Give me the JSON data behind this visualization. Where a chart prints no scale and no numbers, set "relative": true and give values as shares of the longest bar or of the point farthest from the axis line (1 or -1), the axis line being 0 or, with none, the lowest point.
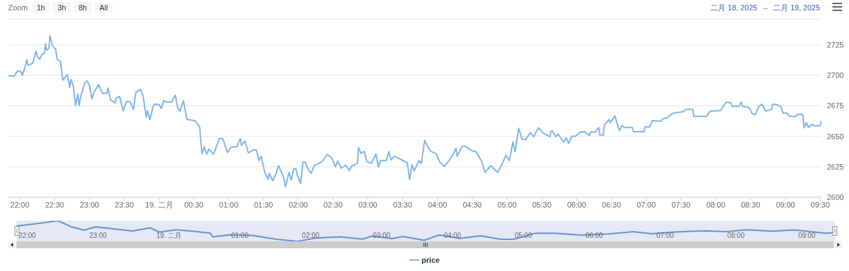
{
  "chart_data": [
    {
      "type": "line",
      "annotations": [
        "Zoom",
        "1h",
        "3h",
        "8h",
        "All",
        "二月 18, 2025",
        "→",
        "二月 19, 2025"
      ],
      "x": [
        "2025-02-18T21:50",
        "2025-02-18T21:55",
        "2025-02-18T21:58",
        "2025-02-18T22:01",
        "2025-02-18T22:02",
        "2025-02-18T22:04",
        "2025-02-18T22:06",
        "2025-02-18T22:07",
        "2025-02-18T22:11",
        "2025-02-18T22:14",
        "2025-02-18T22:15",
        "2025-02-18T22:17",
        "2025-02-18T22:19",
        "2025-02-18T22:21",
        "2025-02-18T22:22",
        "2025-02-18T22:23",
        "2025-02-18T22:25",
        "2025-02-18T22:26",
        "2025-02-18T22:28",
        "2025-02-18T22:31",
        "2025-02-18T22:32",
        "2025-02-18T22:35",
        "2025-02-18T22:37",
        "2025-02-18T22:39",
        "2025-02-18T22:41",
        "2025-02-18T22:43",
        "2025-02-18T22:44",
        "2025-02-18T22:46",
        "2025-02-18T22:48",
        "2025-02-18T22:50",
        "2025-02-18T22:51",
        "2025-02-18T22:53",
        "2025-02-18T22:56",
        "2025-02-18T22:58",
        "2025-02-18T23:00",
        "2025-02-18T23:02",
        "2025-02-18T23:04",
        "2025-02-18T23:08",
        "2025-02-18T23:11",
        "2025-02-18T23:15",
        "2025-02-18T23:16",
        "2025-02-18T23:18",
        "2025-02-18T23:22",
        "2025-02-18T23:23",
        "2025-02-18T23:26",
        "2025-02-18T23:29",
        "2025-02-18T23:32",
        "2025-02-18T23:35",
        "2025-02-18T23:38",
        "2025-02-18T23:40",
        "2025-02-18T23:44",
        "2025-02-18T23:46",
        "2025-02-18T23:49",
        "2025-02-18T23:50",
        "2025-02-18T23:52",
        "2025-02-18T23:55",
        "2025-02-18T23:56",
        "2025-02-19T00:00",
        "2025-02-19T00:02",
        "2025-02-19T00:04",
        "2025-02-19T00:06",
        "2025-02-19T00:11",
        "2025-02-19T00:14",
        "2025-02-19T00:16",
        "2025-02-19T00:18",
        "2025-02-19T00:21",
        "2025-02-19T00:24",
        "2025-02-19T00:28",
        "2025-02-19T00:31",
        "2025-02-19T00:35",
        "2025-02-19T00:37",
        "2025-02-19T00:39",
        "2025-02-19T00:41",
        "2025-02-19T00:43",
        "2025-02-19T00:47",
        "2025-02-19T00:52",
        "2025-02-19T00:55",
        "2025-02-19T00:59",
        "2025-02-19T01:02",
        "2025-02-19T01:07",
        "2025-02-19T01:10",
        "2025-02-19T01:11",
        "2025-02-19T01:14",
        "2025-02-19T01:17",
        "2025-02-19T01:22",
        "2025-02-19T01:24",
        "2025-02-19T01:26",
        "2025-02-19T01:28",
        "2025-02-19T01:31",
        "2025-02-19T01:34",
        "2025-02-19T01:35",
        "2025-02-19T01:38",
        "2025-02-19T01:41",
        "2025-02-19T01:43",
        "2025-02-19T01:46",
        "2025-02-19T01:48",
        "2025-02-19T01:49",
        "2025-02-19T01:52",
        "2025-02-19T01:54",
        "2025-02-19T01:56",
        "2025-02-19T01:58",
        "2025-02-19T01:59",
        "2025-02-19T02:02",
        "2025-02-19T02:04",
        "2025-02-19T02:06",
        "2025-02-19T02:08",
        "2025-02-19T02:11",
        "2025-02-19T02:14",
        "2025-02-19T02:18",
        "2025-02-19T02:21",
        "2025-02-19T02:25",
        "2025-02-19T02:29",
        "2025-02-19T02:32",
        "2025-02-19T02:34",
        "2025-02-19T02:37",
        "2025-02-19T02:41",
        "2025-02-19T02:44",
        "2025-02-19T02:46",
        "2025-02-19T02:51",
        "2025-02-19T02:52",
        "2025-02-19T02:54",
        "2025-02-19T02:57",
        "2025-02-19T02:59",
        "2025-02-19T03:03",
        "2025-02-19T03:07",
        "2025-02-19T03:09",
        "2025-02-19T03:11",
        "2025-02-19T03:16",
        "2025-02-19T03:18",
        "2025-02-19T03:20",
        "2025-02-19T03:23",
        "2025-02-19T03:29",
        "2025-02-19T03:34",
        "2025-02-19T03:36",
        "2025-02-19T03:38",
        "2025-02-19T03:40",
        "2025-02-19T03:44",
        "2025-02-19T03:46",
        "2025-02-19T03:49",
        "2025-02-19T03:51",
        "2025-02-19T03:54",
        "2025-02-19T03:59",
        "2025-02-19T04:02",
        "2025-02-19T04:06",
        "2025-02-19T04:10",
        "2025-02-19T04:13",
        "2025-02-19T04:16",
        "2025-02-19T04:17",
        "2025-02-19T04:21",
        "2025-02-19T04:24",
        "2025-02-19T04:30",
        "2025-02-19T04:33",
        "2025-02-19T04:38",
        "2025-02-19T04:41",
        "2025-02-19T04:46",
        "2025-02-19T04:52",
        "2025-02-19T04:56",
        "2025-02-19T04:59",
        "2025-02-19T05:02",
        "2025-02-19T05:05",
        "2025-02-19T05:07",
        "2025-02-19T05:10",
        "2025-02-19T05:13",
        "2025-02-19T05:16",
        "2025-02-19T05:20",
        "2025-02-19T05:23",
        "2025-02-19T05:27",
        "2025-02-19T05:31",
        "2025-02-19T05:37",
        "2025-02-19T05:38",
        "2025-02-19T05:39",
        "2025-02-19T05:42",
        "2025-02-19T05:44",
        "2025-02-19T05:47",
        "2025-02-19T05:49",
        "2025-02-19T05:51",
        "2025-02-19T05:53",
        "2025-02-19T05:56",
        "2025-02-19T05:59",
        "2025-02-19T06:03",
        "2025-02-19T06:07",
        "2025-02-19T06:11",
        "2025-02-19T06:12",
        "2025-02-19T06:16",
        "2025-02-19T06:19",
        "2025-02-19T06:20",
        "2025-02-19T06:23",
        "2025-02-19T06:24",
        "2025-02-19T06:28",
        "2025-02-19T06:29",
        "2025-02-19T06:33",
        "2025-02-19T06:36",
        "2025-02-19T06:37",
        "2025-02-19T06:39",
        "2025-02-19T06:41",
        "2025-02-19T06:48",
        "2025-02-19T06:49",
        "2025-02-19T06:58",
        "2025-02-19T06:59",
        "2025-02-19T07:03",
        "2025-02-19T07:05",
        "2025-02-19T07:13",
        "2025-02-19T07:14",
        "2025-02-19T07:18",
        "2025-02-19T07:23",
        "2025-02-19T07:32",
        "2025-02-19T07:34",
        "2025-02-19T07:40",
        "2025-02-19T07:41",
        "2025-02-19T07:52",
        "2025-02-19T07:55",
        "2025-02-19T08:01",
        "2025-02-19T08:04",
        "2025-02-19T08:07",
        "2025-02-19T08:09",
        "2025-02-19T08:13",
        "2025-02-19T08:14",
        "2025-02-19T08:20",
        "2025-02-19T08:22",
        "2025-02-19T08:23",
        "2025-02-19T08:29",
        "2025-02-19T08:31",
        "2025-02-19T08:34",
        "2025-02-19T08:37",
        "2025-02-19T08:40",
        "2025-02-19T08:43",
        "2025-02-19T08:48",
        "2025-02-19T08:49",
        "2025-02-19T08:52",
        "2025-02-19T08:56",
        "2025-02-19T08:58",
        "2025-02-19T09:01",
        "2025-02-19T09:04",
        "2025-02-19T09:09",
        "2025-02-19T09:11",
        "2025-02-19T09:15",
        "2025-02-19T09:16",
        "2025-02-19T09:18",
        "2025-02-19T09:20",
        "2025-02-19T09:23",
        "2025-02-19T09:25",
        "2025-02-19T09:30",
        "2025-02-19T09:31"
      ],
      "series": [
        {
          "name": "price",
          "color": "#7cb5ec",
          "values": [
            2699.7,
            2699.3,
            2703.6,
            2703.2,
            2700.1,
            2705.2,
            2712.9,
            2708.3,
            2709.8,
            2720,
            2715.9,
            2713.3,
            2716.8,
            2718.2,
            2725.8,
            2720.7,
            2722.1,
            2732.4,
            2724.6,
            2721.1,
            2713.3,
            2711.4,
            2696.2,
            2698.2,
            2700.7,
            2690,
            2696.6,
            2691.6,
            2675.4,
            2684.6,
            2675.2,
            2684.6,
            2693.9,
            2695.4,
            2691.6,
            2680.7,
            2686.5,
            2692.3,
            2685.3,
            2685.3,
            2689.6,
            2680.3,
            2677.2,
            2681.5,
            2682.6,
            2671,
            2678.7,
            2678.3,
            2672.1,
            2686.1,
            2688.5,
            2683.8,
            2665.7,
            2671,
            2663.6,
            2674.8,
            2676.4,
            2676,
            2672.9,
            2679.3,
            2678.3,
            2678.3,
            2683.8,
            2673.5,
            2670.6,
            2679.1,
            2664,
            2663.2,
            2662.8,
            2657.7,
            2635.6,
            2641.4,
            2635.2,
            2639.5,
            2635.2,
            2648.4,
            2648,
            2636.7,
            2641,
            2641.4,
            2648.2,
            2642.6,
            2646.1,
            2636.4,
            2639.1,
            2638.7,
            2630.1,
            2633.6,
            2621,
            2614.6,
            2619.6,
            2613.4,
            2620,
            2625.9,
            2619.6,
            2614.2,
            2608.4,
            2620.4,
            2614.2,
            2622.9,
            2623.5,
            2618.5,
            2611.3,
            2628.8,
            2628.8,
            2623.9,
            2619.6,
            2626.2,
            2627.8,
            2629.7,
            2635.2,
            2632.1,
            2624.9,
            2629.7,
            2623.9,
            2626.2,
            2622,
            2625.5,
            2627.8,
            2641,
            2636,
            2637.5,
            2629.4,
            2627.8,
            2635.6,
            2624.9,
            2630.1,
            2630.1,
            2637.5,
            2630.7,
            2633.6,
            2630.7,
            2628.2,
            2614.6,
            2626.8,
            2621.6,
            2630.1,
            2627.8,
            2646.7,
            2642.4,
            2637.9,
            2635.6,
            2628.8,
            2625.3,
            2630.1,
            2634.6,
            2639.9,
            2633.6,
            2641.4,
            2641.8,
            2637.9,
            2637.5,
            2629.7,
            2620.4,
            2625.9,
            2620.4,
            2627.8,
            2634.6,
            2630.1,
            2645.3,
            2637.5,
            2656.6,
            2647.6,
            2647.2,
            2653.1,
            2649.6,
            2657,
            2652.7,
            2649.6,
            2654,
            2654.6,
            2649.6,
            2651.9,
            2647.6,
            2645.3,
            2648.8,
            2644.3,
            2650.2,
            2650,
            2653.5,
            2653.8,
            2650.7,
            2653.5,
            2653.5,
            2657.3,
            2651.1,
            2651.1,
            2659.3,
            2663.8,
            2661.2,
            2666.7,
            2657,
            2654.6,
            2658.9,
            2657.3,
            2657.3,
            2653.8,
            2653.8,
            2657.7,
            2657.7,
            2662.8,
            2662.4,
            2664.3,
            2665.1,
            2669,
            2670.2,
            2672.1,
            2672.1,
            2666.3,
            2666.3,
            2670.6,
            2671,
            2671,
            2675.4,
            2678,
            2677.4,
            2674.5,
            2674.5,
            2678,
            2674.5,
            2673.5,
            2669,
            2667.6,
            2674.5,
            2676.4,
            2670.6,
            2672.1,
            2676.4,
            2676,
            2674.5,
            2669,
            2669,
            2666.3,
            2666.3,
            2668.2,
            2667.8,
            2657,
            2661.2,
            2657.3,
            2659.9,
            2658.5,
            2658.5,
            2662.8
          ]
        }
      ],
      "xlim": [
        "2025-02-18T21:50",
        "2025-02-19T09:31"
      ],
      "xticks": [
        {
          "value": "2025-02-18T22:00",
          "label": "22:00"
        },
        {
          "value": "2025-02-18T22:30",
          "label": "22:30"
        },
        {
          "value": "2025-02-18T23:00",
          "label": "23:00"
        },
        {
          "value": "2025-02-18T23:30",
          "label": "23:30"
        },
        {
          "value": "2025-02-19T00:00",
          "label": "19. 二月"
        },
        {
          "value": "2025-02-19T00:30",
          "label": "00:30"
        },
        {
          "value": "2025-02-19T01:00",
          "label": "01:00"
        },
        {
          "value": "2025-02-19T01:30",
          "label": "01:30"
        },
        {
          "value": "2025-02-19T02:00",
          "label": "02:00"
        },
        {
          "value": "2025-02-19T02:30",
          "label": "02:30"
        },
        {
          "value": "2025-02-19T03:00",
          "label": "03:00"
        },
        {
          "value": "2025-02-19T03:30",
          "label": "03:30"
        },
        {
          "value": "2025-02-19T04:00",
          "label": "04:00"
        },
        {
          "value": "2025-02-19T04:30",
          "label": "04:30"
        },
        {
          "value": "2025-02-19T05:00",
          "label": "05:00"
        },
        {
          "value": "2025-02-19T05:30",
          "label": "05:30"
        },
        {
          "value": "2025-02-19T06:00",
          "label": "06:00"
        },
        {
          "value": "2025-02-19T06:30",
          "label": "06:30"
        },
        {
          "value": "2025-02-19T07:00",
          "label": "07:00"
        },
        {
          "value": "2025-02-19T07:30",
          "label": "07:30"
        },
        {
          "value": "2025-02-19T08:00",
          "label": "08:00"
        },
        {
          "value": "2025-02-19T08:30",
          "label": "08:30"
        },
        {
          "value": "2025-02-19T09:00",
          "label": "09:00"
        },
        {
          "value": "2025-02-19T09:30",
          "label": "09:30"
        }
      ],
      "ylim": [
        2600,
        2746
      ],
      "yticks": [
        2600,
        2625,
        2650,
        2675,
        2700,
        2725
      ],
      "grid": "y",
      "legend": "bottom"
    },
    {
      "type": "line",
      "relative": true,
      "color": "#6b8fd0",
      "tick_labels": "x",
      "x": [
        "2025-02-18T21:51",
        "2025-02-18T22:06",
        "2025-02-18T22:14",
        "2025-02-18T22:26",
        "2025-02-18T22:37",
        "2025-02-18T22:48",
        "2025-02-18T22:58",
        "2025-02-18T23:11",
        "2025-02-18T23:29",
        "2025-02-18T23:44",
        "2025-02-18T23:52",
        "2025-02-19T00:06",
        "2025-02-19T00:18",
        "2025-02-19T00:35",
        "2025-02-19T00:37",
        "2025-02-19T00:52",
        "2025-02-19T01:11",
        "2025-02-19T01:31",
        "2025-02-19T01:49",
        "2025-02-19T02:04",
        "2025-02-19T02:25",
        "2025-02-19T02:44",
        "2025-02-19T02:52",
        "2025-02-19T03:09",
        "2025-02-19T03:18",
        "2025-02-19T03:36",
        "2025-02-19T03:49",
        "2025-02-19T04:06",
        "2025-02-19T04:24",
        "2025-02-19T04:41",
        "2025-02-19T04:52",
        "2025-02-19T05:10",
        "2025-02-19T05:27",
        "2025-02-19T05:49",
        "2025-02-19T06:12",
        "2025-02-19T06:33",
        "2025-02-19T06:49",
        "2025-02-19T07:05",
        "2025-02-19T07:34",
        "2025-02-19T07:52",
        "2025-02-19T08:09",
        "2025-02-19T08:31",
        "2025-02-19T08:49",
        "2025-02-19T09:04",
        "2025-02-19T09:16",
        "2025-02-19T09:22"
      ],
      "values": [
        0.74,
        0.84,
        0.9,
        1,
        0.71,
        0.54,
        0.7,
        0.62,
        0.5,
        0.65,
        0.45,
        0.56,
        0.5,
        0.4,
        0.22,
        0.32,
        0.28,
        0.1,
        0,
        0.16,
        0.22,
        0.11,
        0.26,
        0.13,
        0.23,
        0.05,
        0.31,
        0.14,
        0.27,
        0.1,
        0.1,
        0.39,
        0.39,
        0.3,
        0.36,
        0.47,
        0.37,
        0.44,
        0.51,
        0.47,
        0.56,
        0.49,
        0.55,
        0.47,
        0.39,
        0.42
      ],
      "xlim": [
        "2025-02-18T21:51",
        "2025-02-19T09:24"
      ],
      "xticks": [
        {
          "value": "2025-02-18T22:00",
          "label": "22:00"
        },
        {
          "value": "2025-02-18T23:00",
          "label": "23:00"
        },
        {
          "value": "2025-02-19T00:00",
          "label": "19. 二月"
        },
        {
          "value": "2025-02-19T01:00",
          "label": "01:00"
        },
        {
          "value": "2025-02-19T02:00",
          "label": "02:00"
        },
        {
          "value": "2025-02-19T03:00",
          "label": "03:00"
        },
        {
          "value": "2025-02-19T04:00",
          "label": "04:00"
        },
        {
          "value": "2025-02-19T05:00",
          "label": "05:00"
        },
        {
          "value": "2025-02-19T06:00",
          "label": "06:00"
        },
        {
          "value": "2025-02-19T07:00",
          "label": "07:00"
        },
        {
          "value": "2025-02-19T08:00",
          "label": "08:00"
        },
        {
          "value": "2025-02-19T09:00",
          "label": "09:00"
        }
      ]
    }
  ]
}
